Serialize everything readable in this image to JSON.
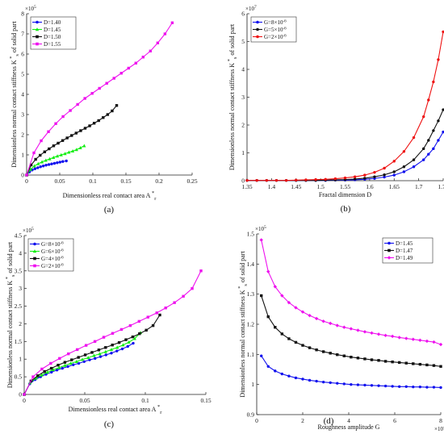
{
  "chart_data": [
    {
      "id": "a",
      "type": "line",
      "panel_label": "(a)",
      "xlabel": "Dimensionless real contact area A",
      "xlabel_sub": "r",
      "xlabel_sup": "*",
      "ylabel": "Dimensionless normal contact stiffness K",
      "ylabel_sub": "s",
      "ylabel_sup": "*",
      "ylabel_suffix": " of solid part",
      "xlim": [
        0,
        0.25
      ],
      "ylim": [
        0,
        8
      ],
      "xticks": [
        "0",
        "0.05",
        "0.1",
        "0.15",
        "0.2",
        "0.25"
      ],
      "yticks": [
        "0",
        "1",
        "2",
        "3",
        "4",
        "5",
        "6",
        "7",
        "8"
      ],
      "yscale_note": "×10",
      "yscale_exp": "5",
      "legend_pos": "top-left",
      "series": [
        {
          "name": "D=1.40",
          "color": "#1010ee",
          "marker": "circle",
          "x": [
            0,
            0.0042,
            0.0084,
            0.0126,
            0.0168,
            0.021,
            0.0252,
            0.0294,
            0.0336,
            0.0378,
            0.042,
            0.0462,
            0.0504,
            0.0546,
            0.06
          ],
          "y": [
            0,
            0.15,
            0.25,
            0.31,
            0.36,
            0.41,
            0.45,
            0.49,
            0.52,
            0.55,
            0.58,
            0.61,
            0.64,
            0.67,
            0.7
          ]
        },
        {
          "name": "D=1.45",
          "color": "#11ee11",
          "marker": "triangle",
          "x": [
            0,
            0.0058,
            0.0116,
            0.0174,
            0.0232,
            0.029,
            0.0348,
            0.0406,
            0.0464,
            0.0522,
            0.058,
            0.0638,
            0.0696,
            0.0754,
            0.0812,
            0.087
          ],
          "y": [
            0,
            0.28,
            0.45,
            0.56,
            0.65,
            0.73,
            0.8,
            0.87,
            0.94,
            1.0,
            1.06,
            1.13,
            1.19,
            1.26,
            1.35,
            1.45
          ]
        },
        {
          "name": "D=1.50",
          "color": "#111111",
          "marker": "square",
          "x": [
            0,
            0.0068,
            0.0136,
            0.0204,
            0.0272,
            0.034,
            0.0408,
            0.0476,
            0.0544,
            0.0612,
            0.068,
            0.0748,
            0.0816,
            0.0884,
            0.0952,
            0.102,
            0.1088,
            0.1156,
            0.1224,
            0.1292,
            0.136
          ],
          "y": [
            0,
            0.5,
            0.78,
            0.98,
            1.15,
            1.3,
            1.45,
            1.58,
            1.71,
            1.84,
            1.96,
            2.08,
            2.2,
            2.32,
            2.44,
            2.57,
            2.7,
            2.85,
            3.0,
            3.18,
            3.45
          ]
        },
        {
          "name": "D=1.55",
          "color": "#ee11ee",
          "marker": "square",
          "x": [
            0,
            0.011,
            0.022,
            0.033,
            0.044,
            0.055,
            0.066,
            0.077,
            0.088,
            0.099,
            0.11,
            0.121,
            0.132,
            0.143,
            0.154,
            0.165,
            0.176,
            0.187,
            0.198,
            0.209,
            0.22
          ],
          "y": [
            0,
            1.1,
            1.7,
            2.15,
            2.55,
            2.9,
            3.2,
            3.5,
            3.8,
            4.05,
            4.3,
            4.55,
            4.8,
            5.05,
            5.3,
            5.55,
            5.85,
            6.15,
            6.55,
            7.0,
            7.55
          ]
        }
      ]
    },
    {
      "id": "b",
      "type": "line",
      "panel_label": "(b)",
      "xlabel": "Fractal dimension D",
      "ylabel": "Dimensionless normal contact stiffness K",
      "ylabel_sub": "s",
      "ylabel_sup": "*",
      "ylabel_suffix": " of solid part",
      "xlim": [
        1.35,
        1.75
      ],
      "ylim": [
        0,
        6
      ],
      "xticks": [
        "1.35",
        "1.4",
        "1.45",
        "1.5",
        "1.55",
        "1.6",
        "1.65",
        "1.7",
        "1.75"
      ],
      "yticks": [
        "0",
        "1",
        "2",
        "3",
        "4",
        "5",
        "6"
      ],
      "yscale_note": "×10",
      "yscale_exp": "7",
      "legend_pos": "top-left",
      "series": [
        {
          "name": "G=8×10",
          "name_exp": "-6",
          "color": "#1010ee",
          "marker": "circle",
          "x": [
            1.35,
            1.37,
            1.39,
            1.41,
            1.43,
            1.45,
            1.47,
            1.49,
            1.51,
            1.53,
            1.55,
            1.57,
            1.59,
            1.61,
            1.63,
            1.65,
            1.67,
            1.69,
            1.71,
            1.72,
            1.73,
            1.74,
            1.75
          ],
          "y": [
            0.01,
            0.01,
            0.01,
            0.01,
            0.01,
            0.01,
            0.01,
            0.01,
            0.01,
            0.02,
            0.02,
            0.03,
            0.05,
            0.08,
            0.13,
            0.2,
            0.32,
            0.5,
            0.75,
            0.95,
            1.15,
            1.45,
            1.75
          ]
        },
        {
          "name": "G=5×10",
          "name_exp": "-6",
          "color": "#111111",
          "marker": "circle",
          "x": [
            1.35,
            1.37,
            1.39,
            1.41,
            1.43,
            1.45,
            1.47,
            1.49,
            1.51,
            1.53,
            1.55,
            1.57,
            1.59,
            1.61,
            1.63,
            1.65,
            1.67,
            1.69,
            1.71,
            1.72,
            1.73,
            1.74,
            1.75
          ],
          "y": [
            0.01,
            0.01,
            0.01,
            0.01,
            0.01,
            0.01,
            0.01,
            0.01,
            0.02,
            0.03,
            0.04,
            0.06,
            0.09,
            0.14,
            0.21,
            0.32,
            0.5,
            0.75,
            1.15,
            1.45,
            1.8,
            2.15,
            2.55
          ]
        },
        {
          "name": "G=2×10",
          "name_exp": "-6",
          "color": "#ee1111",
          "marker": "circle",
          "x": [
            1.35,
            1.37,
            1.39,
            1.41,
            1.43,
            1.45,
            1.47,
            1.49,
            1.51,
            1.53,
            1.55,
            1.57,
            1.59,
            1.61,
            1.63,
            1.65,
            1.67,
            1.69,
            1.71,
            1.72,
            1.73,
            1.74,
            1.75
          ],
          "y": [
            0.01,
            0.01,
            0.01,
            0.01,
            0.01,
            0.02,
            0.03,
            0.04,
            0.05,
            0.07,
            0.1,
            0.14,
            0.2,
            0.3,
            0.45,
            0.7,
            1.05,
            1.55,
            2.3,
            2.9,
            3.55,
            4.35,
            5.35
          ]
        }
      ]
    },
    {
      "id": "c",
      "type": "line",
      "panel_label": "(c)",
      "xlabel": "Dimensionless real contact area A",
      "xlabel_sub": "r",
      "xlabel_sup": "*",
      "ylabel": "Dimensionless normal contact stiffness K",
      "ylabel_sub": "s",
      "ylabel_sup": "*",
      "ylabel_suffix": " of solid part",
      "xlim": [
        0,
        0.15
      ],
      "ylim": [
        0,
        4.5
      ],
      "xticks": [
        "0",
        "0.05",
        "0.1",
        "0.15"
      ],
      "yticks": [
        "0",
        "0.5",
        "1",
        "1.5",
        "2",
        "2.5",
        "3",
        "3.5",
        "4",
        "4.5"
      ],
      "yscale_note": "×10",
      "yscale_exp": "5",
      "legend_pos": "top-left",
      "series": [
        {
          "name": "G=8×10",
          "name_exp": "-6",
          "color": "#1010ee",
          "marker": "circle",
          "x": [
            0,
            0.0045,
            0.009,
            0.0135,
            0.018,
            0.0225,
            0.027,
            0.0315,
            0.036,
            0.0405,
            0.045,
            0.0495,
            0.054,
            0.0585,
            0.063,
            0.0675,
            0.072,
            0.0765,
            0.081,
            0.0855,
            0.09
          ],
          "y": [
            0,
            0.3,
            0.42,
            0.5,
            0.57,
            0.63,
            0.69,
            0.74,
            0.79,
            0.84,
            0.88,
            0.93,
            0.98,
            1.02,
            1.07,
            1.12,
            1.17,
            1.23,
            1.29,
            1.36,
            1.45
          ]
        },
        {
          "name": "G=6×10",
          "name_exp": "-6",
          "color": "#11ee11",
          "marker": "triangle",
          "x": [
            0,
            0.0048,
            0.0096,
            0.0144,
            0.0192,
            0.024,
            0.0288,
            0.0336,
            0.0384,
            0.0432,
            0.048,
            0.0528,
            0.0576,
            0.0624,
            0.0672,
            0.072,
            0.0768,
            0.0816,
            0.0864,
            0.0912,
            0.096
          ],
          "y": [
            0,
            0.33,
            0.46,
            0.55,
            0.63,
            0.7,
            0.76,
            0.82,
            0.88,
            0.93,
            0.99,
            1.04,
            1.1,
            1.15,
            1.21,
            1.27,
            1.33,
            1.4,
            1.48,
            1.58,
            1.75
          ]
        },
        {
          "name": "G=4×10",
          "name_exp": "-6",
          "color": "#111111",
          "marker": "square",
          "x": [
            0,
            0.0056,
            0.0112,
            0.0168,
            0.0224,
            0.028,
            0.0336,
            0.0392,
            0.0448,
            0.0504,
            0.056,
            0.0616,
            0.0672,
            0.0728,
            0.0784,
            0.084,
            0.0896,
            0.0952,
            0.1008,
            0.1064,
            0.112
          ],
          "y": [
            0,
            0.38,
            0.53,
            0.65,
            0.74,
            0.83,
            0.91,
            0.98,
            1.05,
            1.12,
            1.19,
            1.26,
            1.33,
            1.4,
            1.47,
            1.55,
            1.63,
            1.72,
            1.82,
            1.95,
            2.25
          ]
        },
        {
          "name": "G=2×10",
          "name_exp": "-6",
          "color": "#ee11ee",
          "marker": "square",
          "x": [
            0,
            0.0073,
            0.0146,
            0.0219,
            0.0292,
            0.0365,
            0.0438,
            0.0511,
            0.0584,
            0.0657,
            0.073,
            0.0803,
            0.0876,
            0.0949,
            0.1022,
            0.1095,
            0.1168,
            0.1241,
            0.1314,
            0.1387,
            0.146
          ],
          "y": [
            0,
            0.5,
            0.72,
            0.88,
            1.02,
            1.15,
            1.27,
            1.39,
            1.5,
            1.62,
            1.73,
            1.84,
            1.95,
            2.07,
            2.19,
            2.31,
            2.45,
            2.6,
            2.78,
            3.0,
            3.5
          ]
        }
      ]
    },
    {
      "id": "d",
      "type": "line",
      "panel_label": "(d)",
      "xlabel": "Roughness amplitude G",
      "ylabel": "Dimensionless normal contact stiffness K",
      "ylabel_sub": "s",
      "ylabel_sup": "*",
      "ylabel_suffix": " of solid part",
      "xlim": [
        0,
        8
      ],
      "ylim": [
        0.9,
        1.5
      ],
      "xticks": [
        "0",
        "2",
        "4",
        "6",
        "8"
      ],
      "yticks": [
        "0.9",
        "1",
        "1.1",
        "1.2",
        "1.3",
        "1.4",
        "1.5"
      ],
      "yscale_note": "×10",
      "yscale_exp": "5",
      "xscale_note": "×10",
      "xscale_exp": "-6",
      "legend_pos": "top-right",
      "series": [
        {
          "name": "D=1.45",
          "color": "#1010ee",
          "marker": "circle",
          "x": [
            0.2,
            0.5,
            0.8,
            1.1,
            1.4,
            1.7,
            2.0,
            2.3,
            2.6,
            2.9,
            3.2,
            3.5,
            3.8,
            4.1,
            4.4,
            4.7,
            5.0,
            5.3,
            5.6,
            5.9,
            6.2,
            6.5,
            6.8,
            7.1,
            7.4,
            7.7,
            8.0
          ],
          "y": [
            1.095,
            1.06,
            1.045,
            1.035,
            1.028,
            1.022,
            1.018,
            1.014,
            1.011,
            1.008,
            1.006,
            1.004,
            1.002,
            1.0,
            0.999,
            0.998,
            0.997,
            0.996,
            0.995,
            0.994,
            0.993,
            0.993,
            0.992,
            0.992,
            0.991,
            0.991,
            0.99
          ]
        },
        {
          "name": "D=1.47",
          "color": "#111111",
          "marker": "square",
          "x": [
            0.2,
            0.5,
            0.8,
            1.1,
            1.4,
            1.7,
            2.0,
            2.3,
            2.6,
            2.9,
            3.2,
            3.5,
            3.8,
            4.1,
            4.4,
            4.7,
            5.0,
            5.3,
            5.6,
            5.9,
            6.2,
            6.5,
            6.8,
            7.1,
            7.4,
            7.7,
            8.0
          ],
          "y": [
            1.295,
            1.225,
            1.19,
            1.168,
            1.152,
            1.14,
            1.13,
            1.122,
            1.115,
            1.109,
            1.104,
            1.099,
            1.095,
            1.091,
            1.088,
            1.085,
            1.082,
            1.08,
            1.077,
            1.075,
            1.073,
            1.071,
            1.069,
            1.067,
            1.065,
            1.063,
            1.06
          ]
        },
        {
          "name": "D=1.49",
          "color": "#ee11ee",
          "marker": "diamond",
          "x": [
            0.2,
            0.5,
            0.8,
            1.1,
            1.4,
            1.7,
            2.0,
            2.3,
            2.6,
            2.9,
            3.2,
            3.5,
            3.8,
            4.1,
            4.4,
            4.7,
            5.0,
            5.3,
            5.6,
            5.9,
            6.2,
            6.5,
            6.8,
            7.1,
            7.4,
            7.7,
            8.0
          ],
          "y": [
            1.48,
            1.375,
            1.325,
            1.295,
            1.272,
            1.255,
            1.241,
            1.229,
            1.219,
            1.21,
            1.203,
            1.196,
            1.19,
            1.185,
            1.18,
            1.175,
            1.171,
            1.167,
            1.163,
            1.16,
            1.156,
            1.153,
            1.15,
            1.147,
            1.144,
            1.141,
            1.133
          ]
        }
      ]
    }
  ]
}
